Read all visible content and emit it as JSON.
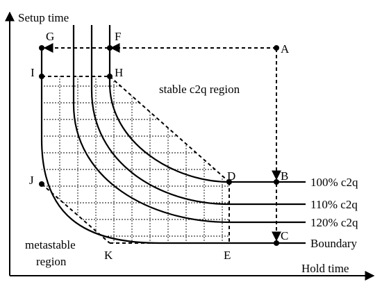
{
  "axes": {
    "y_label": "Setup time",
    "x_label": "Hold time"
  },
  "region_labels": {
    "stable": "stable c2q region",
    "metastable_line1": "metastable",
    "metastable_line2": "region"
  },
  "curve_labels": {
    "c100": "100% c2q",
    "c110": "110% c2q",
    "c120": "120% c2q",
    "boundary": "Boundary"
  },
  "points": {
    "A": "A",
    "B": "B",
    "C": "C",
    "D": "D",
    "E": "E",
    "F": "F",
    "G": "G",
    "H": "H",
    "I": "I",
    "J": "J",
    "K": "K"
  },
  "colors": {
    "stroke": "#000000",
    "grid": "#000000",
    "background": "#ffffff"
  }
}
